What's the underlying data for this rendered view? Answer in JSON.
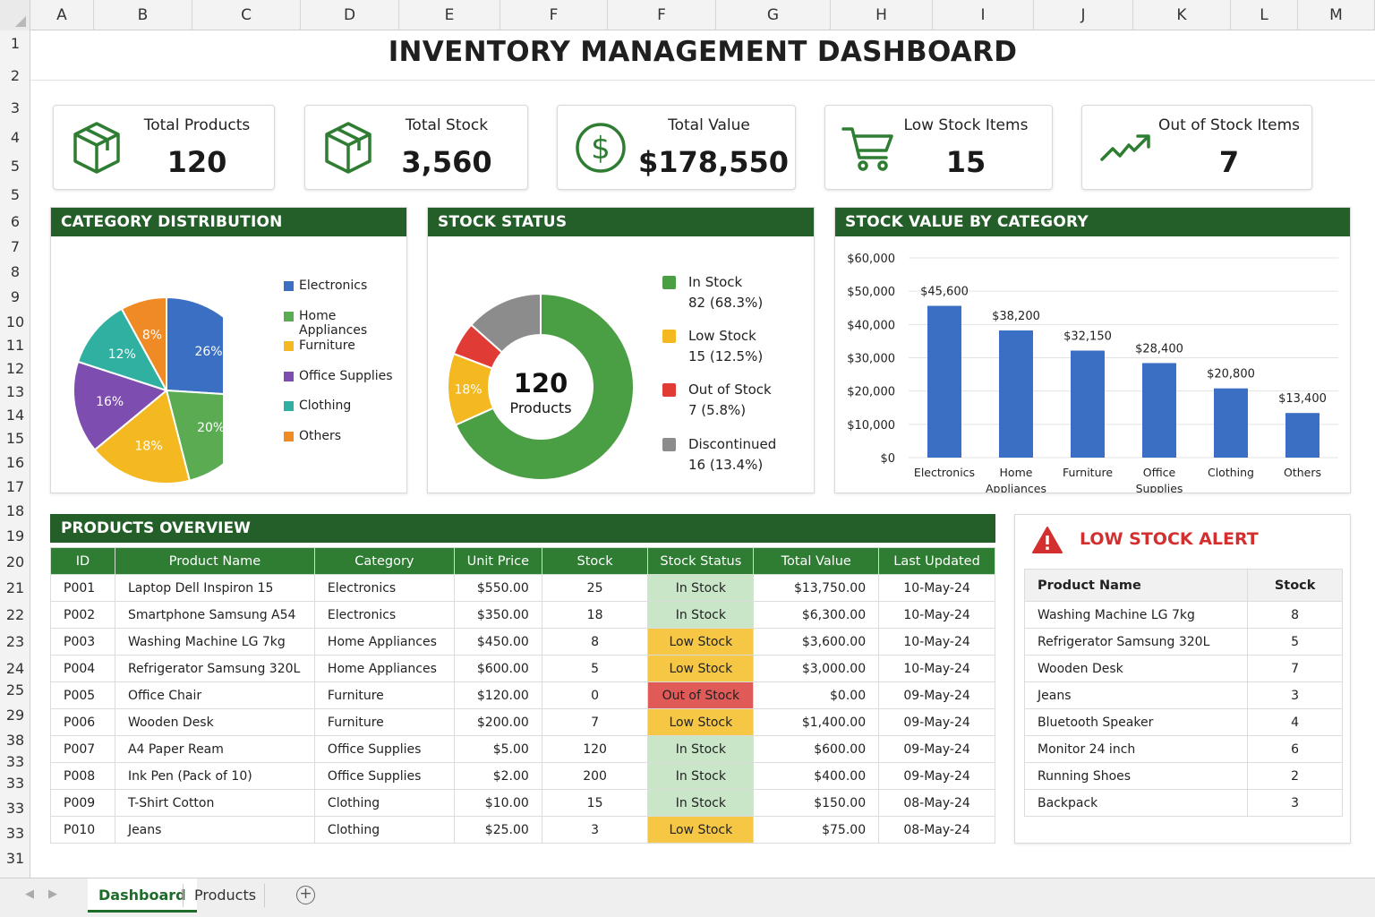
{
  "columns": [
    "A",
    "B",
    "C",
    "D",
    "E",
    "F",
    "F",
    "G",
    "H",
    "I",
    "J",
    "K",
    "L",
    "M"
  ],
  "rows": [
    "1",
    "2",
    "3",
    "4",
    "5",
    "5",
    "6",
    "7",
    "8",
    "9",
    "10",
    "11",
    "12",
    "13",
    "14",
    "15",
    "16",
    "17",
    "18",
    "19",
    "20",
    "21",
    "22",
    "23",
    "24",
    "25",
    "29",
    "38",
    "33",
    "33",
    "33",
    "33",
    "31"
  ],
  "title": "INVENTORY MANAGEMENT DASHBOARD",
  "kpis": [
    {
      "label": "Total Products",
      "value": "120",
      "icon": "box-icon"
    },
    {
      "label": "Total Stock",
      "value": "3,560",
      "icon": "box-icon"
    },
    {
      "label": "Total Value",
      "value": "$178,550",
      "icon": "dollar-icon"
    },
    {
      "label": "Low Stock Items",
      "value": "15",
      "icon": "cart-icon"
    },
    {
      "label": "Out of Stock Items",
      "value": "7",
      "icon": "trend-icon"
    }
  ],
  "colors": {
    "green_dark": "#245f2a",
    "green": "#2e7d32",
    "accent_green": "#43a047",
    "red": "#d32f2f",
    "blue": "#3a6fc4"
  },
  "category_distribution": {
    "title": "CATEGORY DISTRIBUTION",
    "chart_data": {
      "type": "pie",
      "categories": [
        "Electronics",
        "Home Appliances",
        "Furniture",
        "Office Supplies",
        "Clothing",
        "Others"
      ],
      "values": [
        26,
        20,
        18,
        16,
        12,
        8
      ],
      "labels": [
        "26%",
        "20%",
        "18%",
        "16%",
        "12%",
        "8%"
      ],
      "colors": [
        "#3a6fc4",
        "#5aab52",
        "#f4b821",
        "#7e4db0",
        "#2fb0a0",
        "#f08a24"
      ],
      "legend": "right"
    }
  },
  "stock_status": {
    "title": "STOCK STATUS",
    "center_value": "120",
    "center_label": "Products",
    "chart_data": {
      "type": "pie",
      "categories": [
        "In Stock",
        "Low Stock",
        "Out of Stock",
        "Discontinued"
      ],
      "values": [
        68.3,
        12.5,
        5.8,
        13.4
      ],
      "colors": [
        "#4a9e44",
        "#f4b821",
        "#e03b34",
        "#8c8c8c"
      ],
      "slice_label": "18%",
      "legend": "right"
    },
    "legend": [
      {
        "name": "In Stock",
        "detail": "82 (68.3%)"
      },
      {
        "name": "Low Stock",
        "detail": "15 (12.5%)"
      },
      {
        "name": "Out of Stock",
        "detail": "7 (5.8%)"
      },
      {
        "name": "Discontinued",
        "detail": "16 (13.4%)"
      }
    ]
  },
  "stock_value": {
    "title": "STOCK VALUE BY CATEGORY",
    "chart_data": {
      "type": "bar",
      "categories": [
        "Electronics",
        "Home Appliances",
        "Furniture",
        "Office Supplies",
        "Clothing",
        "Others"
      ],
      "category_lines": [
        [
          "Electronics"
        ],
        [
          "Home",
          "Appliances"
        ],
        [
          "Furniture"
        ],
        [
          "Office",
          "Supplies"
        ],
        [
          "Clothing"
        ],
        [
          "Others"
        ]
      ],
      "values": [
        45600,
        38200,
        32150,
        28400,
        20800,
        13400
      ],
      "value_labels": [
        "$45,600",
        "$38,200",
        "$32,150",
        "$28,400",
        "$20,800",
        "$13,400"
      ],
      "ylim": [
        0,
        60000
      ],
      "yticks": [
        "$0",
        "$10,000",
        "$20,000",
        "$30,000",
        "$40,000",
        "$50,000",
        "$60,000"
      ],
      "grid": true,
      "color": "#3a6fc4"
    }
  },
  "products": {
    "title": "PRODUCTS OVERVIEW",
    "headers": [
      "ID",
      "Product Name",
      "Category",
      "Unit Price",
      "Stock",
      "Stock Status",
      "Total Value",
      "Last Updated"
    ],
    "rows": [
      [
        "P001",
        "Laptop Dell Inspiron 15",
        "Electronics",
        "$550.00",
        "25",
        "In Stock",
        "$13,750.00",
        "10-May-24"
      ],
      [
        "P002",
        "Smartphone Samsung A54",
        "Electronics",
        "$350.00",
        "18",
        "In Stock",
        "$6,300.00",
        "10-May-24"
      ],
      [
        "P003",
        "Washing Machine LG 7kg",
        "Home Appliances",
        "$450.00",
        "8",
        "Low Stock",
        "$3,600.00",
        "10-May-24"
      ],
      [
        "P004",
        "Refrigerator Samsung 320L",
        "Home Appliances",
        "$600.00",
        "5",
        "Low Stock",
        "$3,000.00",
        "10-May-24"
      ],
      [
        "P005",
        "Office Chair",
        "Furniture",
        "$120.00",
        "0",
        "Out of Stock",
        "$0.00",
        "09-May-24"
      ],
      [
        "P006",
        "Wooden Desk",
        "Furniture",
        "$200.00",
        "7",
        "Low Stock",
        "$1,400.00",
        "09-May-24"
      ],
      [
        "P007",
        "A4 Paper Ream",
        "Office Supplies",
        "$5.00",
        "120",
        "In Stock",
        "$600.00",
        "09-May-24"
      ],
      [
        "P008",
        "Ink Pen (Pack of 10)",
        "Office Supplies",
        "$2.00",
        "200",
        "In Stock",
        "$400.00",
        "09-May-24"
      ],
      [
        "P009",
        "T-Shirt Cotton",
        "Clothing",
        "$10.00",
        "15",
        "In Stock",
        "$150.00",
        "08-May-24"
      ],
      [
        "P010",
        "Jeans",
        "Clothing",
        "$25.00",
        "3",
        "Low Stock",
        "$75.00",
        "08-May-24"
      ]
    ]
  },
  "low_stock": {
    "title": "LOW STOCK ALERT",
    "headers": [
      "Product Name",
      "Stock"
    ],
    "rows": [
      [
        "Washing Machine LG 7kg",
        "8"
      ],
      [
        "Refrigerator Samsung 320L",
        "5"
      ],
      [
        "Wooden Desk",
        "7"
      ],
      [
        "Jeans",
        "3"
      ],
      [
        "Bluetooth Speaker",
        "4"
      ],
      [
        "Monitor 24 inch",
        "6"
      ],
      [
        "Running Shoes",
        "2"
      ],
      [
        "Backpack",
        "3"
      ]
    ]
  },
  "tabs": [
    "Dashboard",
    "Products"
  ],
  "add_sheet": "+"
}
